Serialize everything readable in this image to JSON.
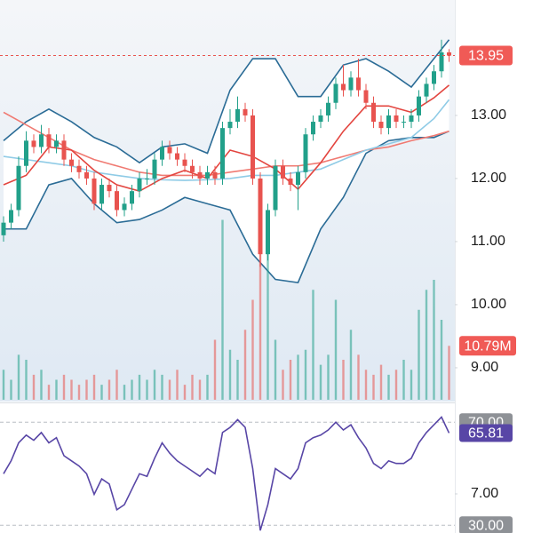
{
  "chart_data": {
    "type": "candlestick",
    "ylim": [
      6.38,
      14.83
    ],
    "yticks": [
      {
        "value": 13,
        "label": "13.00"
      },
      {
        "value": 12,
        "label": "12.00"
      },
      {
        "value": 11,
        "label": "11.00"
      },
      {
        "value": 10,
        "label": "10.00"
      },
      {
        "value": 9,
        "label": "9.00"
      },
      {
        "value": 7,
        "label": "7.00"
      }
    ],
    "up_color": "#22a08a",
    "down_color": "#e8534f",
    "open": [
      11.1,
      11.3,
      11.5,
      12.2,
      12.6,
      12.5,
      12.7,
      12.5,
      12.6,
      12.3,
      12.2,
      12.1,
      12.0,
      11.6,
      11.9,
      11.8,
      11.5,
      11.6,
      11.8,
      12.0,
      12.0,
      12.3,
      12.5,
      12.4,
      12.3,
      12.2,
      12.1,
      12.0,
      12.1,
      12.0,
      12.8,
      12.9,
      13.1,
      13.0,
      12.0,
      10.8,
      11.5,
      12.2,
      12.0,
      11.9,
      12.1,
      12.7,
      12.9,
      13.0,
      13.2,
      13.5,
      13.4,
      13.6,
      13.4,
      13.2,
      12.9,
      12.8,
      13.0,
      12.9,
      12.9,
      13.0,
      13.3,
      13.5,
      13.7,
      14.0
    ],
    "high": [
      11.4,
      11.6,
      12.35,
      12.75,
      12.7,
      12.85,
      12.8,
      12.7,
      12.7,
      12.4,
      12.3,
      12.2,
      12.1,
      12.0,
      12.0,
      11.9,
      11.7,
      11.9,
      12.1,
      12.15,
      12.4,
      12.6,
      12.6,
      12.5,
      12.4,
      12.3,
      12.2,
      12.2,
      12.2,
      12.9,
      13.1,
      13.3,
      13.2,
      13.1,
      12.1,
      11.6,
      12.3,
      12.3,
      12.1,
      12.2,
      12.8,
      13.0,
      13.1,
      13.3,
      13.6,
      13.8,
      13.7,
      13.9,
      13.5,
      13.3,
      13.0,
      13.1,
      13.1,
      13.0,
      13.1,
      13.4,
      13.6,
      13.8,
      14.2,
      14.05
    ],
    "low": [
      11.0,
      11.2,
      11.4,
      12.1,
      12.4,
      12.4,
      12.4,
      12.4,
      12.2,
      12.1,
      12.0,
      11.9,
      11.5,
      11.5,
      11.7,
      11.4,
      11.4,
      11.5,
      11.7,
      11.9,
      11.9,
      12.2,
      12.3,
      12.2,
      12.1,
      12.0,
      11.9,
      11.9,
      11.9,
      11.9,
      12.7,
      12.8,
      12.9,
      11.9,
      10.6,
      10.7,
      11.4,
      11.9,
      11.8,
      11.5,
      12.0,
      12.6,
      12.8,
      12.9,
      13.1,
      13.3,
      13.3,
      13.3,
      13.1,
      12.8,
      12.7,
      12.7,
      12.8,
      12.8,
      12.8,
      12.9,
      13.2,
      13.4,
      13.6,
      13.85
    ],
    "close": [
      11.3,
      11.5,
      12.2,
      12.6,
      12.5,
      12.7,
      12.5,
      12.6,
      12.3,
      12.2,
      12.1,
      12.0,
      11.6,
      11.9,
      11.8,
      11.5,
      11.6,
      11.8,
      12.0,
      12.0,
      12.3,
      12.5,
      12.4,
      12.3,
      12.2,
      12.1,
      12.0,
      12.1,
      12.0,
      12.8,
      12.9,
      13.1,
      13.0,
      12.0,
      10.8,
      11.5,
      12.2,
      12.0,
      11.9,
      12.1,
      12.7,
      12.9,
      13.0,
      13.2,
      13.5,
      13.4,
      13.6,
      13.4,
      13.2,
      12.9,
      12.8,
      13.0,
      12.9,
      12.9,
      13.0,
      13.3,
      13.5,
      13.7,
      14.0,
      13.95
    ],
    "last_price": 13.95,
    "bands": {
      "color": "#2b6c96",
      "x": [
        0,
        3,
        6,
        9,
        12,
        15,
        18,
        21,
        24,
        27,
        30,
        33,
        36,
        39,
        42,
        45,
        48,
        51,
        54,
        57,
        59
      ],
      "upper": [
        12.6,
        12.9,
        13.1,
        12.9,
        12.65,
        12.5,
        12.25,
        12.5,
        12.55,
        12.4,
        13.4,
        13.9,
        13.9,
        13.3,
        13.3,
        13.8,
        13.9,
        13.7,
        13.45,
        13.9,
        14.2
      ],
      "lower": [
        11.2,
        11.2,
        11.9,
        12.0,
        11.6,
        11.3,
        11.35,
        11.5,
        11.7,
        11.6,
        11.5,
        10.8,
        10.4,
        10.35,
        11.2,
        11.7,
        12.4,
        12.6,
        12.65,
        12.65,
        12.75
      ]
    },
    "lines": [
      {
        "color": "#f07a72",
        "x": [
          0,
          3,
          6,
          9,
          12,
          15,
          18,
          21,
          24,
          27,
          30,
          33,
          36,
          39,
          42,
          45,
          48,
          51,
          54,
          57,
          59
        ],
        "values": [
          13.05,
          12.85,
          12.65,
          12.45,
          12.3,
          12.2,
          12.1,
          12.05,
          12.05,
          12.05,
          12.1,
          12.15,
          12.2,
          12.2,
          12.25,
          12.35,
          12.45,
          12.5,
          12.6,
          12.68,
          12.75
        ]
      },
      {
        "color": "#8fcbe6",
        "x": [
          0,
          3,
          6,
          9,
          12,
          15,
          18,
          21,
          24,
          27,
          30,
          33,
          36,
          39,
          42,
          45,
          48,
          51,
          54,
          57,
          59
        ],
        "values": [
          12.35,
          12.3,
          12.25,
          12.2,
          12.1,
          12.05,
          12.0,
          11.98,
          11.97,
          11.98,
          12.0,
          12.05,
          12.05,
          12.1,
          12.15,
          12.3,
          12.45,
          12.55,
          12.65,
          12.95,
          13.25
        ]
      },
      {
        "color": "#e3453f",
        "x": [
          0,
          3,
          6,
          9,
          12,
          15,
          18,
          21,
          24,
          27,
          30,
          33,
          36,
          39,
          42,
          45,
          48,
          51,
          54,
          57,
          59
        ],
        "values": [
          11.9,
          12.05,
          12.5,
          12.45,
          12.13,
          11.9,
          11.8,
          12.0,
          12.13,
          12.0,
          12.45,
          12.35,
          12.15,
          11.83,
          12.25,
          12.75,
          13.15,
          13.15,
          13.05,
          13.28,
          13.48
        ]
      }
    ],
    "volume": {
      "ylim": [
        0,
        80
      ],
      "values": [
        6,
        4,
        9,
        8,
        5,
        6,
        3,
        4,
        5,
        4,
        3,
        4,
        5,
        3,
        4,
        6,
        3,
        4,
        5,
        4,
        6,
        5,
        4,
        6,
        3,
        5,
        4,
        5,
        12,
        36,
        10,
        8,
        14,
        20,
        34,
        30,
        12,
        6,
        8,
        9,
        10,
        22,
        7,
        9,
        20,
        8,
        14,
        9,
        6,
        5,
        7,
        5,
        6,
        8,
        6,
        18,
        22,
        24,
        16,
        10.79
      ],
      "last": {
        "value": 10.79,
        "label": "10.79M"
      }
    },
    "rsi": {
      "color": "#5846a6",
      "ylim": [
        27,
        77
      ],
      "yticks": [
        {
          "value": 70,
          "label": "70.00"
        },
        {
          "value": 30,
          "label": "30.00"
        }
      ],
      "values": [
        50,
        55,
        62,
        65,
        63,
        66,
        62,
        64,
        57,
        55,
        53,
        50,
        42,
        48,
        46,
        36,
        38,
        44,
        50,
        49,
        56,
        62,
        58,
        55,
        53,
        51,
        49,
        52,
        50,
        66,
        68,
        71,
        68,
        52,
        28,
        38,
        52,
        50,
        48,
        52,
        62,
        64,
        65,
        67,
        70,
        67,
        69,
        64,
        60,
        54,
        52,
        55,
        54,
        54,
        56,
        62,
        66,
        69,
        72,
        65.81
      ],
      "last": 65.81
    }
  }
}
